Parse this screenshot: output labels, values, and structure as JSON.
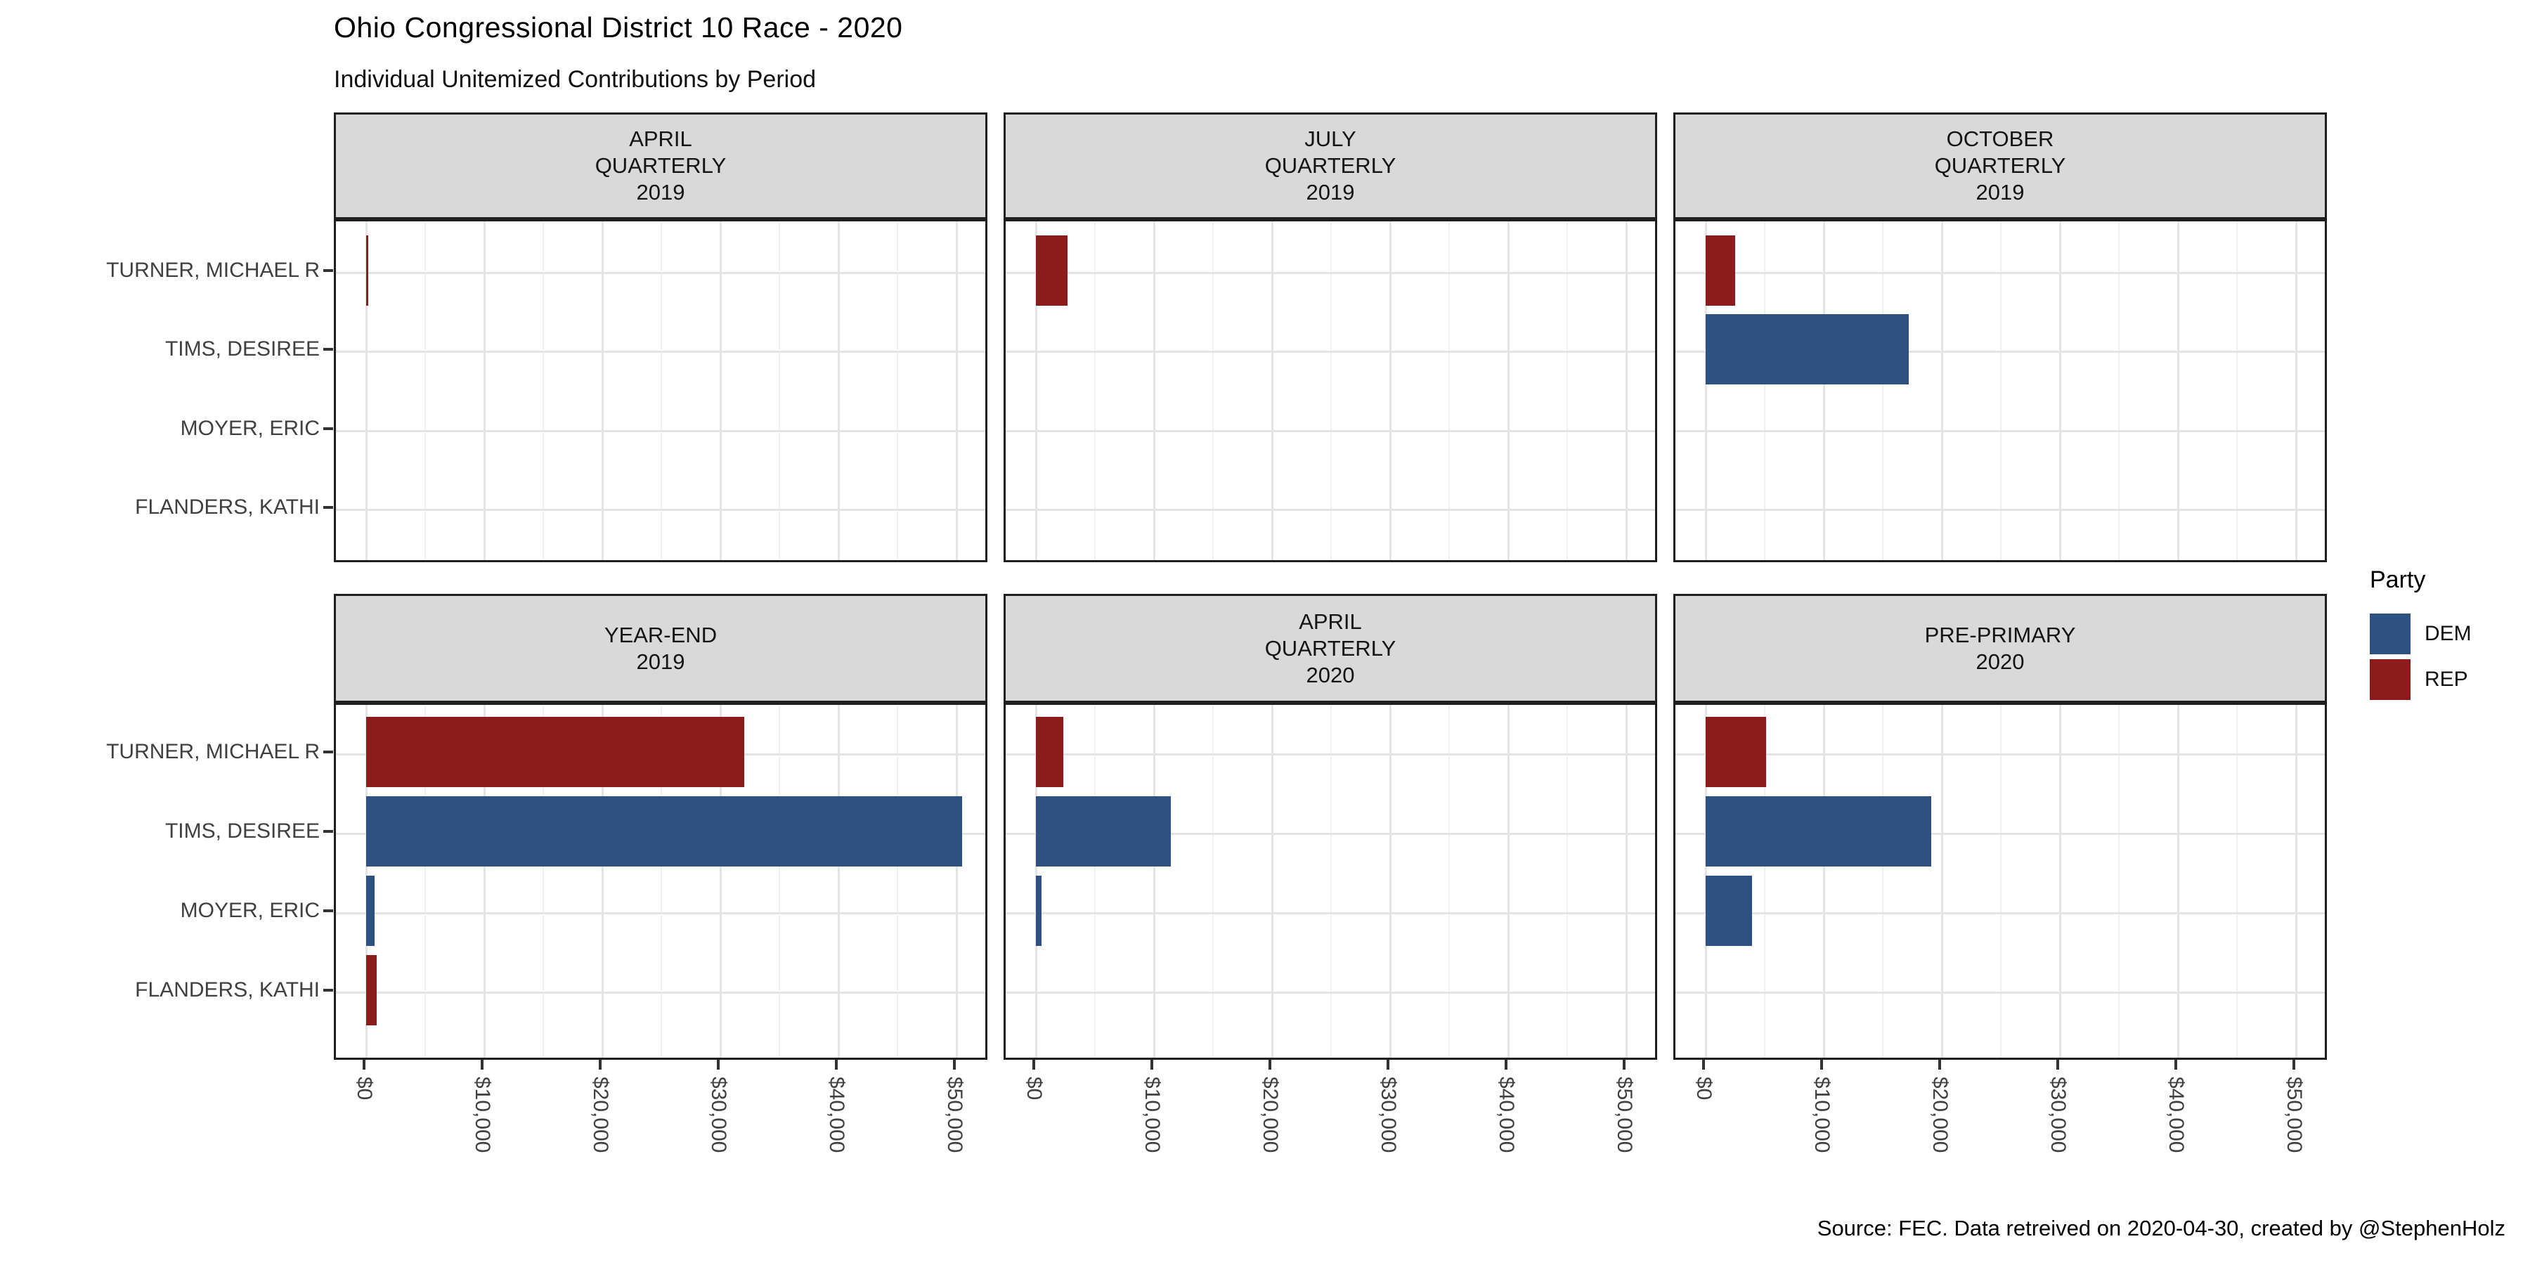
{
  "title": "Ohio Congressional District 10 Race - 2020",
  "subtitle": "Individual Unitemized Contributions by Period",
  "caption": "Source: FEC. Data retreived on 2020-04-30, created by @StephenHolz",
  "legend": {
    "title": "Party",
    "entries": [
      {
        "label": "DEM",
        "color": "#2E5181"
      },
      {
        "label": "REP",
        "color": "#8C1B1B"
      }
    ]
  },
  "colors": {
    "dem": "#2E5181",
    "rep": "#8C1B1B",
    "strip_bg": "#D9D9D9",
    "panel_border": "#1F1F1F",
    "grid_major": "#E4E4E4",
    "grid_minor": "#F1F1F1",
    "axis_text": "#404040",
    "background": "#FFFFFF"
  },
  "chart_data": {
    "type": "bar",
    "orientation": "horizontal",
    "title": "Ohio Congressional District 10 Race - 2020",
    "subtitle": "Individual Unitemized Contributions by Period",
    "xlabel": "",
    "ylabel": "",
    "grid": true,
    "legend_position": "right",
    "candidates": [
      "TURNER, MICHAEL R",
      "TIMS, DESIREE",
      "MOYER, ERIC",
      "FLANDERS, KATHI"
    ],
    "x_ticks": [
      "$0",
      "$10,000",
      "$20,000",
      "$30,000",
      "$40,000",
      "$50,000"
    ],
    "x_tick_values": [
      0,
      10000,
      20000,
      30000,
      40000,
      50000
    ],
    "x_minor_step": 5000,
    "x_range": [
      0,
      52800
    ],
    "facets": [
      {
        "period": "APRIL QUARTERLY 2019",
        "strip_lines": [
          "APRIL",
          "QUARTERLY",
          "2019"
        ],
        "bars": [
          {
            "candidate": "TURNER, MICHAEL R",
            "party": "REP",
            "amount": 200
          }
        ]
      },
      {
        "period": "JULY QUARTERLY 2019",
        "strip_lines": [
          "JULY",
          "QUARTERLY",
          "2019"
        ],
        "bars": [
          {
            "candidate": "TURNER, MICHAEL R",
            "party": "REP",
            "amount": 2700
          }
        ]
      },
      {
        "period": "OCTOBER QUARTERLY 2019",
        "strip_lines": [
          "OCTOBER",
          "QUARTERLY",
          "2019"
        ],
        "bars": [
          {
            "candidate": "TURNER, MICHAEL R",
            "party": "REP",
            "amount": 2500
          },
          {
            "candidate": "TIMS, DESIREE",
            "party": "DEM",
            "amount": 17200
          }
        ]
      },
      {
        "period": "YEAR-END 2019",
        "strip_lines": [
          "YEAR-END",
          "2019"
        ],
        "bars": [
          {
            "candidate": "TURNER, MICHAEL R",
            "party": "REP",
            "amount": 32000
          },
          {
            "candidate": "TIMS, DESIREE",
            "party": "DEM",
            "amount": 50500
          },
          {
            "candidate": "MOYER, ERIC",
            "party": "DEM",
            "amount": 700
          },
          {
            "candidate": "FLANDERS, KATHI",
            "party": "REP",
            "amount": 900
          }
        ]
      },
      {
        "period": "APRIL QUARTERLY 2020",
        "strip_lines": [
          "APRIL",
          "QUARTERLY",
          "2020"
        ],
        "bars": [
          {
            "candidate": "TURNER, MICHAEL R",
            "party": "REP",
            "amount": 2300
          },
          {
            "candidate": "TIMS, DESIREE",
            "party": "DEM",
            "amount": 11400
          },
          {
            "candidate": "MOYER, ERIC",
            "party": "DEM",
            "amount": 500
          }
        ]
      },
      {
        "period": "PRE-PRIMARY 2020",
        "strip_lines": [
          "PRE-PRIMARY",
          "2020"
        ],
        "bars": [
          {
            "candidate": "TURNER, MICHAEL R",
            "party": "REP",
            "amount": 5100
          },
          {
            "candidate": "TIMS, DESIREE",
            "party": "DEM",
            "amount": 19100
          },
          {
            "candidate": "MOYER, ERIC",
            "party": "DEM",
            "amount": 3900
          }
        ]
      }
    ]
  }
}
